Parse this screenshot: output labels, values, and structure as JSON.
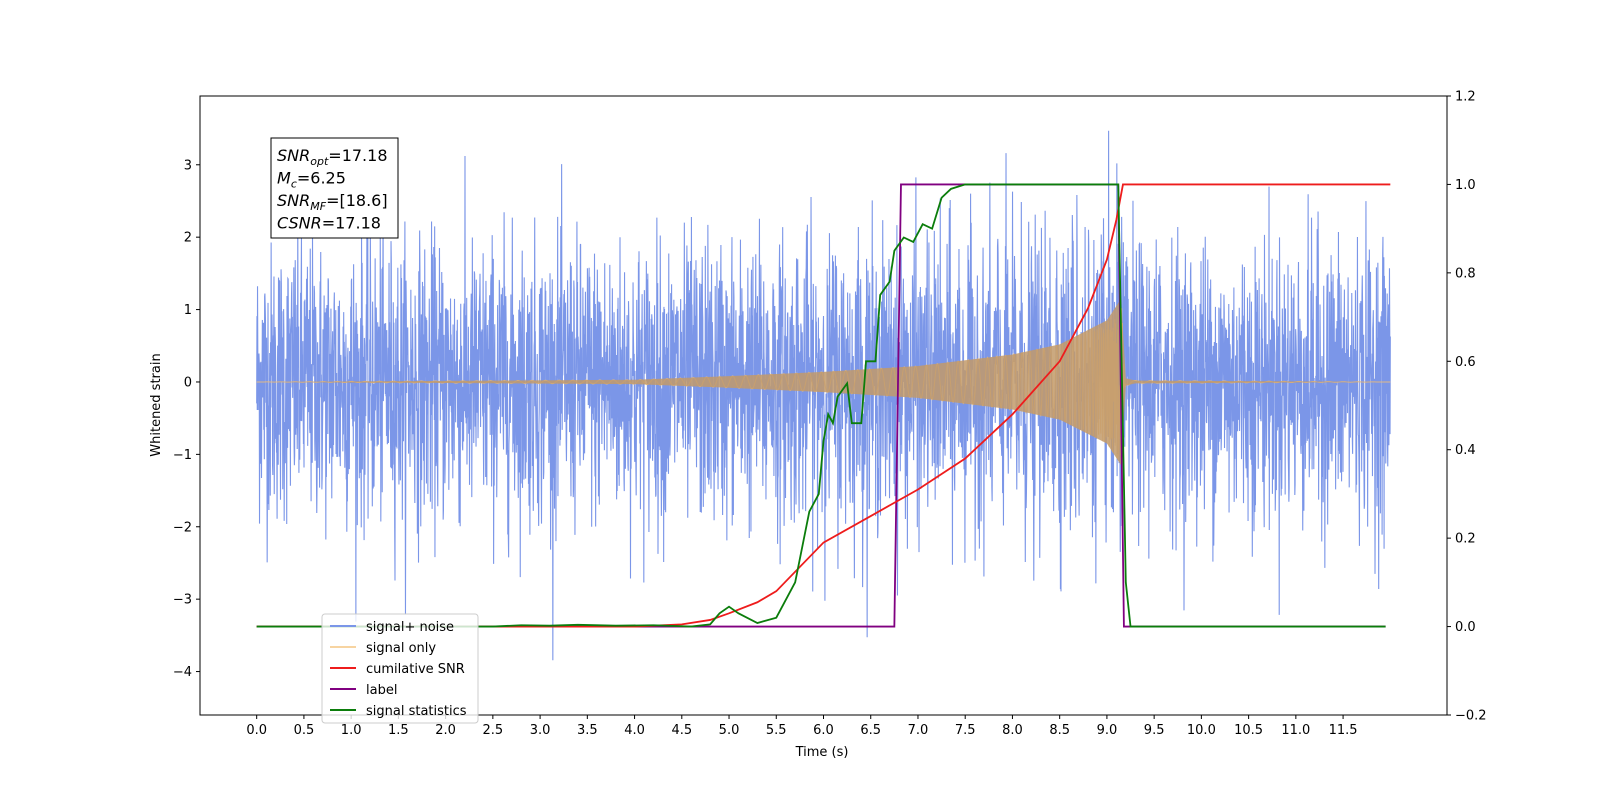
{
  "chart_data": {
    "type": "line",
    "title": "",
    "xlabel": "Time (s)",
    "ylabel": "Whitened strain",
    "xlim": [
      -0.6,
      12.6
    ],
    "ylim": [
      -4.6,
      3.95
    ],
    "y2lim": [
      -0.2,
      1.2
    ],
    "grid": false,
    "legend_placement": "lower-left",
    "x_ticks": [
      "0.0",
      "0.5",
      "1.0",
      "1.5",
      "2.0",
      "2.5",
      "3.0",
      "3.5",
      "4.0",
      "4.5",
      "5.0",
      "5.5",
      "6.0",
      "6.5",
      "7.0",
      "7.5",
      "8.0",
      "8.5",
      "9.0",
      "9.5",
      "10.0",
      "10.5",
      "11.0",
      "11.5"
    ],
    "y_ticks": [
      "3",
      "2",
      "1",
      "0",
      "−1",
      "−2",
      "−3",
      "−4"
    ],
    "y2_ticks": [
      "1.2",
      "1.0",
      "0.8",
      "0.6",
      "0.4",
      "0.2",
      "0.0",
      "−0.2"
    ],
    "annotation": {
      "lines": [
        {
          "base": "SNR",
          "sub": "opt",
          "value": "=17.18"
        },
        {
          "base": "M",
          "sub": "c",
          "value": "=6.25"
        },
        {
          "base": "SNR",
          "sub": "MF",
          "value": "=[18.6]"
        },
        {
          "base": "CSNR",
          "sub": "",
          "value": "=17.18"
        }
      ]
    },
    "series": [
      {
        "name": "signal+ noise",
        "axis": "left",
        "color": "#7b96e8",
        "description_only": true,
        "x_range": [
          0.0,
          12.0
        ],
        "mean": 0.0,
        "approx_std": 1.0
      },
      {
        "name": "signal only",
        "axis": "left",
        "color": "#f4c27a",
        "x_range": [
          0.0,
          12.0
        ],
        "merger_time": 9.15,
        "envelope_points": [
          [
            0.0,
            0.0
          ],
          [
            4.0,
            0.03
          ],
          [
            5.0,
            0.08
          ],
          [
            6.0,
            0.14
          ],
          [
            7.0,
            0.22
          ],
          [
            8.0,
            0.38
          ],
          [
            8.5,
            0.52
          ],
          [
            9.0,
            0.85
          ],
          [
            9.1,
            1.05
          ],
          [
            9.15,
            1.15
          ],
          [
            9.2,
            0.05
          ],
          [
            9.3,
            0.02
          ],
          [
            12.0,
            0.0
          ]
        ]
      },
      {
        "name": "cumilative SNR",
        "axis": "right",
        "color": "#ee1c1c",
        "points": [
          [
            0.0,
            0.0
          ],
          [
            4.0,
            0.0
          ],
          [
            4.5,
            0.005
          ],
          [
            4.8,
            0.015
          ],
          [
            5.0,
            0.03
          ],
          [
            5.3,
            0.055
          ],
          [
            5.5,
            0.08
          ],
          [
            6.0,
            0.19
          ],
          [
            6.5,
            0.25
          ],
          [
            7.0,
            0.31
          ],
          [
            7.5,
            0.38
          ],
          [
            8.0,
            0.48
          ],
          [
            8.5,
            0.6
          ],
          [
            8.8,
            0.72
          ],
          [
            9.0,
            0.83
          ],
          [
            9.1,
            0.92
          ],
          [
            9.17,
            1.0
          ],
          [
            12.0,
            1.0
          ]
        ]
      },
      {
        "name": "label",
        "axis": "right",
        "color": "#800080",
        "points": [
          [
            0.0,
            0.0
          ],
          [
            6.75,
            0.0
          ],
          [
            6.82,
            1.0
          ],
          [
            9.12,
            1.0
          ],
          [
            9.18,
            0.0
          ],
          [
            11.95,
            0.0
          ]
        ]
      },
      {
        "name": "signal statistics",
        "axis": "right",
        "color": "#0b7d0b",
        "points": [
          [
            0.0,
            0.0
          ],
          [
            2.5,
            0.0
          ],
          [
            2.8,
            0.003
          ],
          [
            3.1,
            0.002
          ],
          [
            3.4,
            0.004
          ],
          [
            3.8,
            0.002
          ],
          [
            4.2,
            0.003
          ],
          [
            4.6,
            0.0
          ],
          [
            4.8,
            0.005
          ],
          [
            4.9,
            0.03
          ],
          [
            5.0,
            0.045
          ],
          [
            5.1,
            0.03
          ],
          [
            5.3,
            0.008
          ],
          [
            5.5,
            0.02
          ],
          [
            5.7,
            0.1
          ],
          [
            5.85,
            0.26
          ],
          [
            5.95,
            0.3
          ],
          [
            6.0,
            0.42
          ],
          [
            6.05,
            0.48
          ],
          [
            6.1,
            0.46
          ],
          [
            6.15,
            0.52
          ],
          [
            6.25,
            0.55
          ],
          [
            6.3,
            0.46
          ],
          [
            6.4,
            0.46
          ],
          [
            6.45,
            0.6
          ],
          [
            6.55,
            0.6
          ],
          [
            6.6,
            0.75
          ],
          [
            6.7,
            0.78
          ],
          [
            6.75,
            0.85
          ],
          [
            6.85,
            0.88
          ],
          [
            6.95,
            0.87
          ],
          [
            7.05,
            0.91
          ],
          [
            7.15,
            0.9
          ],
          [
            7.25,
            0.97
          ],
          [
            7.35,
            0.99
          ],
          [
            7.5,
            1.0
          ],
          [
            9.12,
            1.0
          ],
          [
            9.2,
            0.1
          ],
          [
            9.25,
            0.0
          ],
          [
            11.95,
            0.0
          ]
        ]
      }
    ],
    "legend": [
      {
        "name": "signal+ noise",
        "color": "#7b96e8"
      },
      {
        "name": "signal only",
        "color": "#f4c27a"
      },
      {
        "name": "cumilative SNR",
        "color": "#ee1c1c"
      },
      {
        "name": "label",
        "color": "#800080"
      },
      {
        "name": "signal statistics",
        "color": "#0b7d0b"
      }
    ]
  }
}
